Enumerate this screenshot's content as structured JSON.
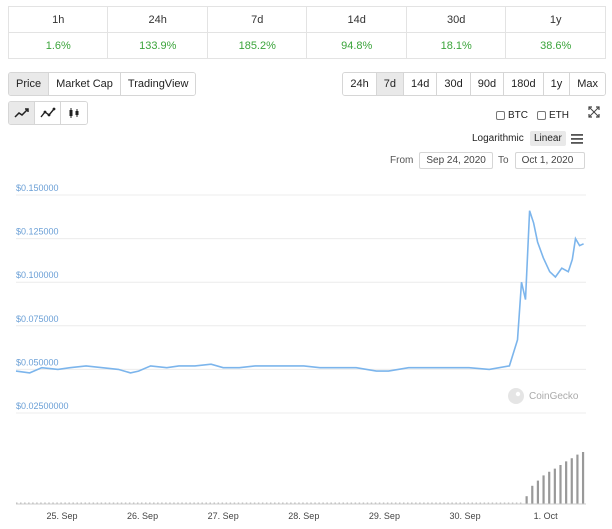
{
  "performance": {
    "headers": [
      "1h",
      "24h",
      "7d",
      "14d",
      "30d",
      "1y"
    ],
    "values": [
      "1.6%",
      "133.9%",
      "185.2%",
      "94.8%",
      "18.1%",
      "38.6%"
    ]
  },
  "view_tabs": [
    "Price",
    "Market Cap",
    "TradingView"
  ],
  "range_tabs": [
    "24h",
    "7d",
    "14d",
    "30d",
    "90d",
    "180d",
    "1y",
    "Max"
  ],
  "compare": {
    "btc_label": "BTC",
    "eth_label": "ETH"
  },
  "scale": {
    "log_label": "Logarithmic",
    "linear_label": "Linear"
  },
  "date_range": {
    "from_label": "From",
    "from_value": "Sep 24, 2020",
    "to_label": "To",
    "to_value": "Oct 1, 2020"
  },
  "watermark": "CoinGecko",
  "colors": {
    "line": "#7cb5ec",
    "positive": "#3ba43b",
    "volume": "#999999"
  },
  "chart_data": {
    "type": "line",
    "y_ticks": [
      "$0.150000",
      "$0.125000",
      "$0.100000",
      "$0.075000",
      "$0.050000",
      "$0.02500000"
    ],
    "y_tick_values": [
      0.15,
      0.125,
      0.1,
      0.075,
      0.05,
      0.025
    ],
    "ylim": [
      0.025,
      0.15
    ],
    "x_ticks": [
      "25. Sep",
      "26. Sep",
      "27. Sep",
      "28. Sep",
      "29. Sep",
      "30. Sep",
      "1. Oct"
    ],
    "x_tick_values": [
      1,
      2,
      3,
      4,
      5,
      6,
      7
    ],
    "xlim": [
      0.43,
      7.5
    ],
    "series": [
      {
        "x": [
          0.43,
          0.6,
          0.75,
          0.95,
          1.1,
          1.3,
          1.5,
          1.7,
          1.85,
          1.95,
          2.1,
          2.3,
          2.45,
          2.65,
          2.85,
          3.0,
          3.2,
          3.4,
          3.6,
          3.8,
          4.0,
          4.2,
          4.45,
          4.65,
          4.9,
          5.05,
          5.3,
          5.55,
          5.8,
          6.05,
          6.3,
          6.55,
          6.65,
          6.7,
          6.75,
          6.8,
          6.85,
          6.9,
          6.97,
          7.05,
          7.12,
          7.2,
          7.28,
          7.33,
          7.37,
          7.42,
          7.47
        ],
        "values": [
          0.049,
          0.048,
          0.051,
          0.05,
          0.051,
          0.052,
          0.051,
          0.05,
          0.048,
          0.049,
          0.052,
          0.051,
          0.052,
          0.052,
          0.053,
          0.051,
          0.051,
          0.052,
          0.052,
          0.052,
          0.052,
          0.051,
          0.051,
          0.051,
          0.049,
          0.049,
          0.051,
          0.051,
          0.051,
          0.051,
          0.05,
          0.052,
          0.067,
          0.1,
          0.09,
          0.141,
          0.134,
          0.123,
          0.114,
          0.106,
          0.103,
          0.108,
          0.106,
          0.113,
          0.125,
          0.121,
          0.122
        ]
      }
    ],
    "volume": {
      "x": [
        6.75,
        6.82,
        6.89,
        6.96,
        7.03,
        7.1,
        7.17,
        7.24,
        7.31,
        7.38,
        7.45
      ],
      "values": [
        0.15,
        0.35,
        0.45,
        0.55,
        0.62,
        0.68,
        0.75,
        0.82,
        0.88,
        0.95,
        1.0
      ]
    }
  }
}
